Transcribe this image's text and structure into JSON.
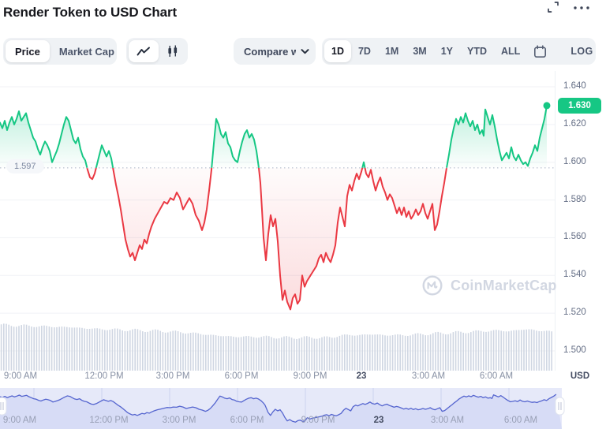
{
  "header": {
    "title": "Render Token to USD Chart"
  },
  "toolbar": {
    "metric_tabs": [
      {
        "label": "Price",
        "active": true
      },
      {
        "label": "Market Cap",
        "active": false
      }
    ],
    "chart_type_options": [
      "line",
      "candlestick"
    ],
    "active_chart_type": "line",
    "compare_label": "Compare w",
    "ranges": [
      {
        "label": "1D",
        "active": true
      },
      {
        "label": "7D",
        "active": false
      },
      {
        "label": "1M",
        "active": false
      },
      {
        "label": "3M",
        "active": false
      },
      {
        "label": "1Y",
        "active": false
      },
      {
        "label": "YTD",
        "active": false
      },
      {
        "label": "ALL",
        "active": false
      }
    ],
    "log_label": "LOG"
  },
  "watermark": {
    "text": "CoinMarketCap"
  },
  "navigator": {
    "x_ticks": [
      "9:00 AM",
      "12:00 PM",
      "3:00 PM",
      "6:00 PM",
      "9:00 PM",
      "23",
      "3:00 AM",
      "6:00 AM"
    ]
  },
  "chart_data": {
    "type": "line",
    "title": "Render Token to USD Chart",
    "unit_label": "USD",
    "previous_close": 1.597,
    "previous_close_label": "1.597",
    "current_price": 1.63,
    "current_price_label": "1.630",
    "ylim": [
      1.494,
      1.646
    ],
    "grid": true,
    "y_ticks": [
      "1.640",
      "1.620",
      "1.600",
      "1.580",
      "1.560",
      "1.540",
      "1.520",
      "1.500"
    ],
    "x_ticks": [
      "9:00 AM",
      "12:00 PM",
      "3:00 PM",
      "6:00 PM",
      "9:00 PM",
      "23",
      "3:00 AM",
      "6:00 AM"
    ],
    "colors": {
      "up": "#16C784",
      "down": "#EA3943",
      "baseline": "#aab3c5",
      "grid": "#f0f2f6",
      "volume": "#cfd6e2",
      "badge_bg": "#16C784",
      "navigator_line": "#5565cf",
      "navigator_fill": "#d7dcf6",
      "navigator_bg": "#e6e9f9",
      "navigator_grid": "#ccd2ee"
    },
    "series": [
      {
        "name": "price",
        "points": [
          [
            0,
            1.621
          ],
          [
            3,
            1.618
          ],
          [
            6,
            1.622
          ],
          [
            9,
            1.617
          ],
          [
            12,
            1.621
          ],
          [
            15,
            1.624
          ],
          [
            18,
            1.62
          ],
          [
            21,
            1.623
          ],
          [
            24,
            1.627
          ],
          [
            27,
            1.622
          ],
          [
            30,
            1.624
          ],
          [
            33,
            1.626
          ],
          [
            36,
            1.621
          ],
          [
            39,
            1.617
          ],
          [
            42,
            1.613
          ],
          [
            45,
            1.611
          ],
          [
            48,
            1.607
          ],
          [
            51,
            1.604
          ],
          [
            54,
            1.608
          ],
          [
            57,
            1.611
          ],
          [
            60,
            1.609
          ],
          [
            63,
            1.606
          ],
          [
            66,
            1.6
          ],
          [
            69,
            1.603
          ],
          [
            72,
            1.606
          ],
          [
            75,
            1.61
          ],
          [
            78,
            1.615
          ],
          [
            81,
            1.62
          ],
          [
            84,
            1.624
          ],
          [
            87,
            1.622
          ],
          [
            90,
            1.617
          ],
          [
            93,
            1.612
          ],
          [
            96,
            1.61
          ],
          [
            99,
            1.613
          ],
          [
            102,
            1.607
          ],
          [
            105,
            1.603
          ],
          [
            108,
            1.601
          ],
          [
            111,
            1.596
          ],
          [
            114,
            1.592
          ],
          [
            117,
            1.591
          ],
          [
            120,
            1.594
          ],
          [
            123,
            1.599
          ],
          [
            126,
            1.604
          ],
          [
            129,
            1.609
          ],
          [
            132,
            1.606
          ],
          [
            135,
            1.603
          ],
          [
            138,
            1.606
          ],
          [
            141,
            1.602
          ],
          [
            144,
            1.595
          ],
          [
            147,
            1.588
          ],
          [
            150,
            1.582
          ],
          [
            153,
            1.575
          ],
          [
            156,
            1.567
          ],
          [
            159,
            1.559
          ],
          [
            162,
            1.554
          ],
          [
            165,
            1.55
          ],
          [
            168,
            1.552
          ],
          [
            171,
            1.548
          ],
          [
            174,
            1.552
          ],
          [
            177,
            1.556
          ],
          [
            180,
            1.554
          ],
          [
            183,
            1.559
          ],
          [
            186,
            1.557
          ],
          [
            189,
            1.562
          ],
          [
            192,
            1.566
          ],
          [
            196,
            1.57
          ],
          [
            200,
            1.573
          ],
          [
            204,
            1.576
          ],
          [
            208,
            1.579
          ],
          [
            212,
            1.578
          ],
          [
            216,
            1.581
          ],
          [
            220,
            1.58
          ],
          [
            224,
            1.584
          ],
          [
            228,
            1.581
          ],
          [
            232,
            1.575
          ],
          [
            236,
            1.578
          ],
          [
            240,
            1.581
          ],
          [
            244,
            1.578
          ],
          [
            248,
            1.572
          ],
          [
            252,
            1.569
          ],
          [
            256,
            1.564
          ],
          [
            259,
            1.568
          ],
          [
            262,
            1.575
          ],
          [
            265,
            1.585
          ],
          [
            268,
            1.596
          ],
          [
            271,
            1.61
          ],
          [
            274,
            1.623
          ],
          [
            277,
            1.62
          ],
          [
            280,
            1.615
          ],
          [
            283,
            1.613
          ],
          [
            286,
            1.616
          ],
          [
            289,
            1.61
          ],
          [
            292,
            1.608
          ],
          [
            295,
            1.603
          ],
          [
            298,
            1.601
          ],
          [
            301,
            1.6
          ],
          [
            304,
            1.606
          ],
          [
            307,
            1.611
          ],
          [
            310,
            1.615
          ],
          [
            313,
            1.617
          ],
          [
            316,
            1.613
          ],
          [
            319,
            1.615
          ],
          [
            322,
            1.612
          ],
          [
            325,
            1.606
          ],
          [
            328,
            1.597
          ],
          [
            330,
            1.589
          ],
          [
            332,
            1.575
          ],
          [
            334,
            1.56
          ],
          [
            337,
            1.548
          ],
          [
            340,
            1.562
          ],
          [
            343,
            1.572
          ],
          [
            346,
            1.566
          ],
          [
            349,
            1.57
          ],
          [
            352,
            1.558
          ],
          [
            355,
            1.54
          ],
          [
            358,
            1.527
          ],
          [
            361,
            1.532
          ],
          [
            364,
            1.526
          ],
          [
            368,
            1.522
          ],
          [
            371,
            1.528
          ],
          [
            374,
            1.53
          ],
          [
            377,
            1.525
          ],
          [
            380,
            1.527
          ],
          [
            383,
            1.54
          ],
          [
            386,
            1.534
          ],
          [
            389,
            1.537
          ],
          [
            392,
            1.539
          ],
          [
            395,
            1.541
          ],
          [
            398,
            1.543
          ],
          [
            401,
            1.545
          ],
          [
            404,
            1.549
          ],
          [
            407,
            1.551
          ],
          [
            410,
            1.547
          ],
          [
            413,
            1.552
          ],
          [
            416,
            1.549
          ],
          [
            419,
            1.547
          ],
          [
            422,
            1.551
          ],
          [
            425,
            1.556
          ],
          [
            428,
            1.568
          ],
          [
            431,
            1.576
          ],
          [
            434,
            1.571
          ],
          [
            437,
            1.566
          ],
          [
            440,
            1.582
          ],
          [
            443,
            1.588
          ],
          [
            446,
            1.585
          ],
          [
            449,
            1.59
          ],
          [
            452,
            1.594
          ],
          [
            455,
            1.591
          ],
          [
            458,
            1.595
          ],
          [
            461,
            1.6
          ],
          [
            464,
            1.594
          ],
          [
            467,
            1.592
          ],
          [
            470,
            1.596
          ],
          [
            473,
            1.59
          ],
          [
            476,
            1.585
          ],
          [
            479,
            1.589
          ],
          [
            482,
            1.592
          ],
          [
            485,
            1.587
          ],
          [
            488,
            1.584
          ],
          [
            491,
            1.58
          ],
          [
            494,
            1.583
          ],
          [
            497,
            1.581
          ],
          [
            500,
            1.577
          ],
          [
            503,
            1.573
          ],
          [
            506,
            1.576
          ],
          [
            509,
            1.572
          ],
          [
            512,
            1.576
          ],
          [
            515,
            1.571
          ],
          [
            518,
            1.574
          ],
          [
            521,
            1.57
          ],
          [
            524,
            1.572
          ],
          [
            527,
            1.575
          ],
          [
            530,
            1.572
          ],
          [
            533,
            1.574
          ],
          [
            536,
            1.578
          ],
          [
            539,
            1.573
          ],
          [
            542,
            1.57
          ],
          [
            545,
            1.574
          ],
          [
            548,
            1.578
          ],
          [
            551,
            1.564
          ],
          [
            554,
            1.567
          ],
          [
            557,
            1.574
          ],
          [
            560,
            1.582
          ],
          [
            563,
            1.589
          ],
          [
            566,
            1.597
          ],
          [
            569,
            1.604
          ],
          [
            572,
            1.612
          ],
          [
            575,
            1.618
          ],
          [
            578,
            1.623
          ],
          [
            581,
            1.62
          ],
          [
            584,
            1.624
          ],
          [
            587,
            1.621
          ],
          [
            590,
            1.626
          ],
          [
            593,
            1.622
          ],
          [
            596,
            1.619
          ],
          [
            599,
            1.622
          ],
          [
            602,
            1.617
          ],
          [
            605,
            1.62
          ],
          [
            608,
            1.615
          ],
          [
            611,
            1.617
          ],
          [
            613,
            1.614
          ],
          [
            615,
            1.628
          ],
          [
            618,
            1.624
          ],
          [
            621,
            1.62
          ],
          [
            624,
            1.625
          ],
          [
            627,
            1.619
          ],
          [
            630,
            1.612
          ],
          [
            633,
            1.606
          ],
          [
            636,
            1.601
          ],
          [
            639,
            1.603
          ],
          [
            642,
            1.605
          ],
          [
            645,
            1.602
          ],
          [
            648,
            1.608
          ],
          [
            651,
            1.603
          ],
          [
            654,
            1.601
          ],
          [
            657,
            1.604
          ],
          [
            660,
            1.601
          ],
          [
            663,
            1.599
          ],
          [
            666,
            1.6
          ],
          [
            669,
            1.598
          ],
          [
            672,
            1.602
          ],
          [
            675,
            1.605
          ],
          [
            678,
            1.609
          ],
          [
            681,
            1.606
          ],
          [
            684,
            1.613
          ],
          [
            687,
            1.618
          ],
          [
            690,
            1.623
          ],
          [
            693,
            1.63
          ]
        ]
      }
    ],
    "volume_profile": [
      [
        0,
        58
      ],
      [
        30,
        57
      ],
      [
        60,
        56
      ],
      [
        90,
        55
      ],
      [
        120,
        53
      ],
      [
        150,
        52
      ],
      [
        180,
        51
      ],
      [
        210,
        50
      ],
      [
        240,
        48
      ],
      [
        260,
        46
      ],
      [
        280,
        44
      ],
      [
        300,
        43
      ],
      [
        330,
        43
      ],
      [
        360,
        42
      ],
      [
        390,
        42
      ],
      [
        420,
        42
      ],
      [
        432,
        45
      ],
      [
        450,
        45
      ],
      [
        470,
        46
      ],
      [
        490,
        45
      ],
      [
        510,
        45
      ],
      [
        530,
        46
      ],
      [
        550,
        47
      ],
      [
        570,
        48
      ],
      [
        590,
        49
      ],
      [
        610,
        50
      ],
      [
        630,
        51
      ],
      [
        645,
        50
      ],
      [
        660,
        52
      ],
      [
        675,
        52
      ],
      [
        690,
        50
      ],
      [
        702,
        49
      ]
    ]
  }
}
